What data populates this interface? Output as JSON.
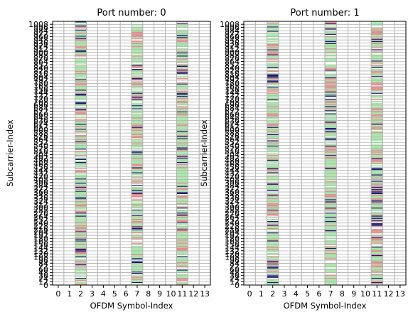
{
  "chart_data": [
    {
      "type": "heatmap",
      "title": "Port number: 0",
      "xlabel": "OFDM Symbol-Index",
      "ylabel": "Subcarrier-Index",
      "x_ticks": [
        0,
        1,
        2,
        3,
        4,
        5,
        6,
        7,
        8,
        9,
        10,
        11,
        12,
        13
      ],
      "y_ticks": [
        0,
        12,
        24,
        36,
        48,
        60,
        72,
        84,
        96,
        108,
        120,
        132,
        144,
        156,
        168,
        180,
        192,
        204,
        216,
        228,
        240,
        252,
        264,
        276,
        288,
        300,
        312,
        324,
        336,
        348,
        360,
        372,
        384,
        396,
        408,
        420,
        432,
        444,
        456,
        468,
        480,
        492,
        504,
        516,
        528,
        540,
        552,
        564,
        576,
        588,
        600,
        612,
        624,
        636,
        648,
        660,
        672,
        684,
        696,
        708,
        720,
        732,
        744,
        756,
        768,
        780,
        792,
        804,
        816,
        828,
        840,
        852,
        864,
        876,
        888,
        900,
        912,
        924,
        936,
        948,
        960,
        972,
        984,
        996,
        1008
      ],
      "xlim": [
        -0.5,
        13.5
      ],
      "ylim": [
        -0.5,
        1019.5
      ],
      "grid": true,
      "dmrs_symbols": [
        2,
        7,
        11
      ],
      "cell_colors": [
        "#a8e6a8",
        "#e88a8a",
        "#1a1a6e",
        "#ffffff"
      ]
    },
    {
      "type": "heatmap",
      "title": "Port number: 1",
      "xlabel": "OFDM Symbol-Index",
      "ylabel": "Subcarrier-Index",
      "x_ticks": [
        0,
        1,
        2,
        3,
        4,
        5,
        6,
        7,
        8,
        9,
        10,
        11,
        12,
        13
      ],
      "y_ticks": [
        0,
        12,
        24,
        36,
        48,
        60,
        72,
        84,
        96,
        108,
        120,
        132,
        144,
        156,
        168,
        180,
        192,
        204,
        216,
        228,
        240,
        252,
        264,
        276,
        288,
        300,
        312,
        324,
        336,
        348,
        360,
        372,
        384,
        396,
        408,
        420,
        432,
        444,
        456,
        468,
        480,
        492,
        504,
        516,
        528,
        540,
        552,
        564,
        576,
        588,
        600,
        612,
        624,
        636,
        648,
        660,
        672,
        684,
        696,
        708,
        720,
        732,
        744,
        756,
        768,
        780,
        792,
        804,
        816,
        828,
        840,
        852,
        864,
        876,
        888,
        900,
        912,
        924,
        936,
        948,
        960,
        972,
        984,
        996,
        1008
      ],
      "xlim": [
        -0.5,
        13.5
      ],
      "ylim": [
        -0.5,
        1019.5
      ],
      "grid": true,
      "dmrs_symbols": [
        2,
        7,
        11
      ],
      "cell_colors": [
        "#a8e6a8",
        "#e88a8a",
        "#1a1a6e",
        "#ffffff"
      ]
    }
  ]
}
